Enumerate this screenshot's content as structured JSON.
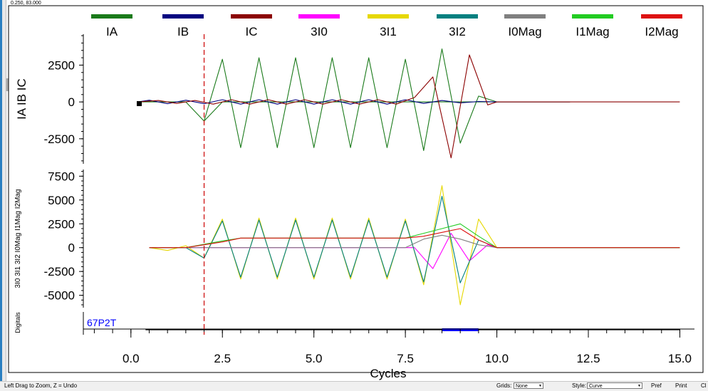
{
  "cursor_readout": "0.250, 83.000",
  "colors": {
    "IA": "#1a7a1a",
    "IB": "#000080",
    "IC": "#8b0000",
    "3I0": "#ff00ff",
    "3I1": "#e6d800",
    "3I2": "#008080",
    "I0Mag": "#808080",
    "I1Mag": "#22cc22",
    "I2Mag": "#dd1111",
    "cursor": "#cc0000",
    "digital_label": "#0000ff",
    "digital_bar": "#0000ff"
  },
  "chart_data": {
    "type": "line",
    "xlabel": "Cycles",
    "x_ticks": [
      "0.0",
      "2.5",
      "5.0",
      "7.5",
      "10.0",
      "12.5",
      "15.0"
    ],
    "x_tick_values": [
      0,
      2.5,
      5,
      7.5,
      10,
      12.5,
      15
    ],
    "xlim": [
      -1.3,
      15.4
    ],
    "cursor_x": 2.0,
    "legend": [
      "IA",
      "IB",
      "IC",
      "3I0",
      "3I1",
      "3I2",
      "I0Mag",
      "I1Mag",
      "I2Mag"
    ],
    "legend_placement": "top",
    "grid": false,
    "panels": [
      {
        "ylabel": "IA IB IC",
        "y_ticks": [
          "2500",
          "0",
          "-2500"
        ],
        "y_tick_values": [
          2500,
          0,
          -2500
        ],
        "ylim": [
          -4200,
          4600
        ],
        "series": [
          {
            "name": "IA",
            "segments": [
              {
                "x": [
                  0.2,
                  1.5,
                  2.0,
                  2.5,
                  12.0
                ],
                "y": [
                  0,
                  0,
                  -1300,
                  0,
                  0
                ],
                "note_kind": "env",
                "base": 0
              },
              {
                "x": [
                  2.0,
                  2.5,
                  3.0,
                  3.5,
                  4.0,
                  4.5,
                  5.0,
                  5.5,
                  6.0,
                  6.5,
                  7.0,
                  7.5,
                  8.0,
                  8.5,
                  9.0,
                  9.5,
                  10.0
                ],
                "y": [
                  -1300,
                  2900,
                  -3100,
                  3000,
                  -3100,
                  3000,
                  -3100,
                  3000,
                  -3100,
                  3000,
                  -3100,
                  2900,
                  -3300,
                  3600,
                  -2800,
                  400,
                  0
                ]
              }
            ]
          },
          {
            "name": "IB",
            "segments": [
              {
                "x": [
                  0.2,
                  0.5,
                  1.0,
                  1.5,
                  2.0,
                  2.5,
                  3.0,
                  3.5,
                  4.0,
                  4.5,
                  5.0,
                  5.5,
                  6.0,
                  6.5,
                  7.0,
                  7.5,
                  8.0,
                  8.5,
                  9.0,
                  9.5,
                  10.0,
                  11.0,
                  12.0
                ],
                "y": [
                  0,
                  120,
                  -120,
                  120,
                  -120,
                  150,
                  -150,
                  150,
                  -150,
                  150,
                  -150,
                  150,
                  -150,
                  150,
                  -150,
                  150,
                  -100,
                  100,
                  -60,
                  30,
                  0,
                  0,
                  0
                ]
              }
            ]
          },
          {
            "name": "IC",
            "segments": [
              {
                "x": [
                  0.2,
                  0.75,
                  1.25,
                  1.75,
                  2.25,
                  2.75,
                  3.25,
                  3.75,
                  4.25,
                  4.75,
                  5.25,
                  5.75,
                  6.25,
                  6.75,
                  7.25,
                  7.75,
                  8.25,
                  8.75,
                  9.25,
                  9.75,
                  10.0,
                  15.0
                ],
                "y": [
                  0,
                  100,
                  -100,
                  100,
                  -150,
                  150,
                  -150,
                  150,
                  -150,
                  150,
                  -150,
                  150,
                  -150,
                  150,
                  -150,
                  300,
                  1700,
                  -3800,
                  3200,
                  -200,
                  0,
                  0
                ]
              }
            ]
          }
        ]
      },
      {
        "ylabel": "3I0 3I1 3I2 I0Mag I1Mag I2Mag",
        "y_ticks": [
          "7500",
          "5000",
          "2500",
          "0",
          "-2500",
          "-5000"
        ],
        "y_tick_values": [
          7500,
          5000,
          2500,
          0,
          -2500,
          -5000
        ],
        "ylim": [
          -6300,
          8200
        ],
        "series": [
          {
            "name": "3I0",
            "segments": [
              {
                "x": [
                  0.5,
                  7.75,
                  8.25,
                  8.75,
                  9.25,
                  9.75,
                  10.0,
                  15.0
                ],
                "y": [
                  0,
                  0,
                  -2200,
                  1500,
                  -1400,
                  300,
                  0,
                  0
                ]
              }
            ]
          },
          {
            "name": "3I1",
            "segments": [
              {
                "x": [
                  0.5,
                  1.0,
                  1.5,
                  2.0,
                  2.5,
                  3.0,
                  3.5,
                  4.0,
                  4.5,
                  5.0,
                  5.5,
                  6.0,
                  6.5,
                  7.0,
                  7.5,
                  8.0,
                  8.5,
                  9.0,
                  9.5,
                  10.0,
                  15.0
                ],
                "y": [
                  0,
                  -300,
                  200,
                  -1100,
                  3000,
                  -3300,
                  3100,
                  -3300,
                  3100,
                  -3300,
                  3100,
                  -3300,
                  3100,
                  -3300,
                  3000,
                  -3900,
                  6500,
                  -6000,
                  3000,
                  0,
                  0
                ]
              }
            ]
          },
          {
            "name": "3I2",
            "segments": [
              {
                "x": [
                  0.5,
                  1.5,
                  2.0,
                  2.5,
                  3.0,
                  3.5,
                  4.0,
                  4.5,
                  5.0,
                  5.5,
                  6.0,
                  6.5,
                  7.0,
                  7.5,
                  8.0,
                  8.5,
                  9.0,
                  9.5,
                  10.0,
                  15.0
                ],
                "y": [
                  0,
                  0,
                  -1100,
                  2800,
                  -3100,
                  2900,
                  -3100,
                  2900,
                  -3100,
                  2900,
                  -3100,
                  2900,
                  -3100,
                  2800,
                  -3600,
                  5400,
                  -3700,
                  800,
                  0,
                  0
                ]
              }
            ]
          },
          {
            "name": "I0Mag",
            "segments": [
              {
                "x": [
                  0.5,
                  7.5,
                  8.0,
                  8.5,
                  9.0,
                  9.5,
                  10.0,
                  15.0
                ],
                "y": [
                  0,
                  0,
                  900,
                  1300,
                  900,
                  300,
                  0,
                  0
                ]
              }
            ]
          },
          {
            "name": "I1Mag",
            "segments": [
              {
                "x": [
                  0.5,
                  1.5,
                  2.5,
                  3.0,
                  7.5,
                  8.0,
                  8.5,
                  9.0,
                  9.5,
                  10.0,
                  15.0
                ],
                "y": [
                  0,
                  0,
                  700,
                  1000,
                  1000,
                  1500,
                  2000,
                  2500,
                  1200,
                  0,
                  0
                ]
              }
            ]
          },
          {
            "name": "I2Mag",
            "segments": [
              {
                "x": [
                  0.5,
                  1.5,
                  2.5,
                  3.0,
                  7.5,
                  8.0,
                  8.5,
                  9.0,
                  9.5,
                  10.0,
                  15.0
                ],
                "y": [
                  0,
                  0,
                  600,
                  1000,
                  1000,
                  1200,
                  1600,
                  2000,
                  800,
                  0,
                  0
                ]
              }
            ]
          }
        ]
      }
    ],
    "digitals": {
      "ylabel": "Digitals",
      "channel": "67P2T",
      "line_x": [
        0.4,
        15.0
      ],
      "active_x": [
        8.5,
        9.5
      ]
    }
  },
  "statusbar": {
    "hint": "Left Drag to Zoom, Z = Undo",
    "grids_label": "Grids:",
    "grids_value": "None",
    "style_label": "Style:",
    "style_value": "Curve",
    "pref": "Pref",
    "print": "Print",
    "ch": "Cl"
  }
}
